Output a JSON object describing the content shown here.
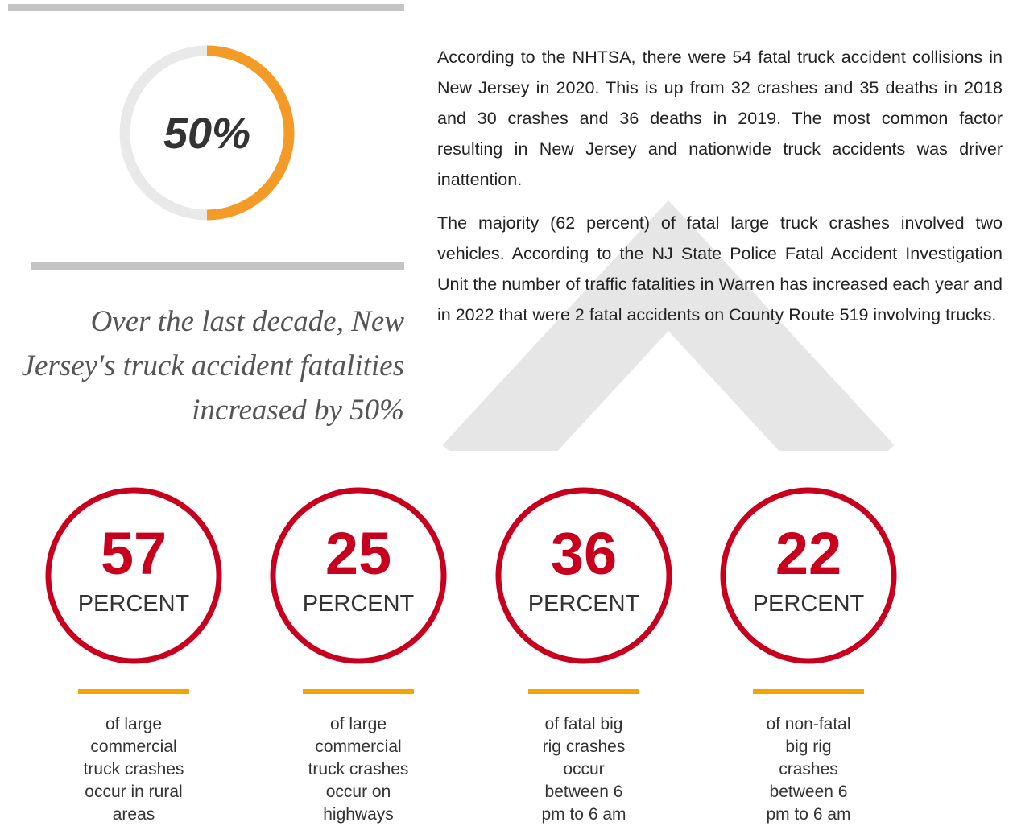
{
  "donut": {
    "label": "50%",
    "value": 50
  },
  "quote": "Over the last decade, New Jersey's truck accident fatalities increased by 50%",
  "paragraphs": [
    "According to the NHTSA, there were 54 fatal truck accident collisions in New Jersey in 2020. This is up from 32 crashes and 35 deaths in 2018 and 30 crashes and 36 deaths in 2019. The most common factor resulting in New Jersey and nationwide truck accidents was driver inattention.",
    "The majority (62 percent) of fatal large truck crashes involved two vehicles. According to the NJ State Police Fatal Accident Investigation Unit the number of traffic fatalities in Warren has increased each year and in 2022 that were 2 fatal accidents on County Route 519 involving trucks."
  ],
  "stats": [
    {
      "number": "57",
      "unit": "PERCENT",
      "lines": [
        "of large",
        "commercial",
        "truck crashes",
        "occur in rural",
        "areas"
      ]
    },
    {
      "number": "25",
      "unit": "PERCENT",
      "lines": [
        "of large",
        "commercial",
        "truck crashes",
        "occur on",
        "highways"
      ]
    },
    {
      "number": "36",
      "unit": "PERCENT",
      "lines": [
        "of fatal big",
        "rig crashes",
        "occur",
        "between 6",
        "pm to 6 am"
      ]
    },
    {
      "number": "22",
      "unit": "PERCENT",
      "lines": [
        "of non-fatal",
        "big rig",
        "crashes",
        "between 6",
        "pm to 6 am"
      ]
    }
  ]
}
